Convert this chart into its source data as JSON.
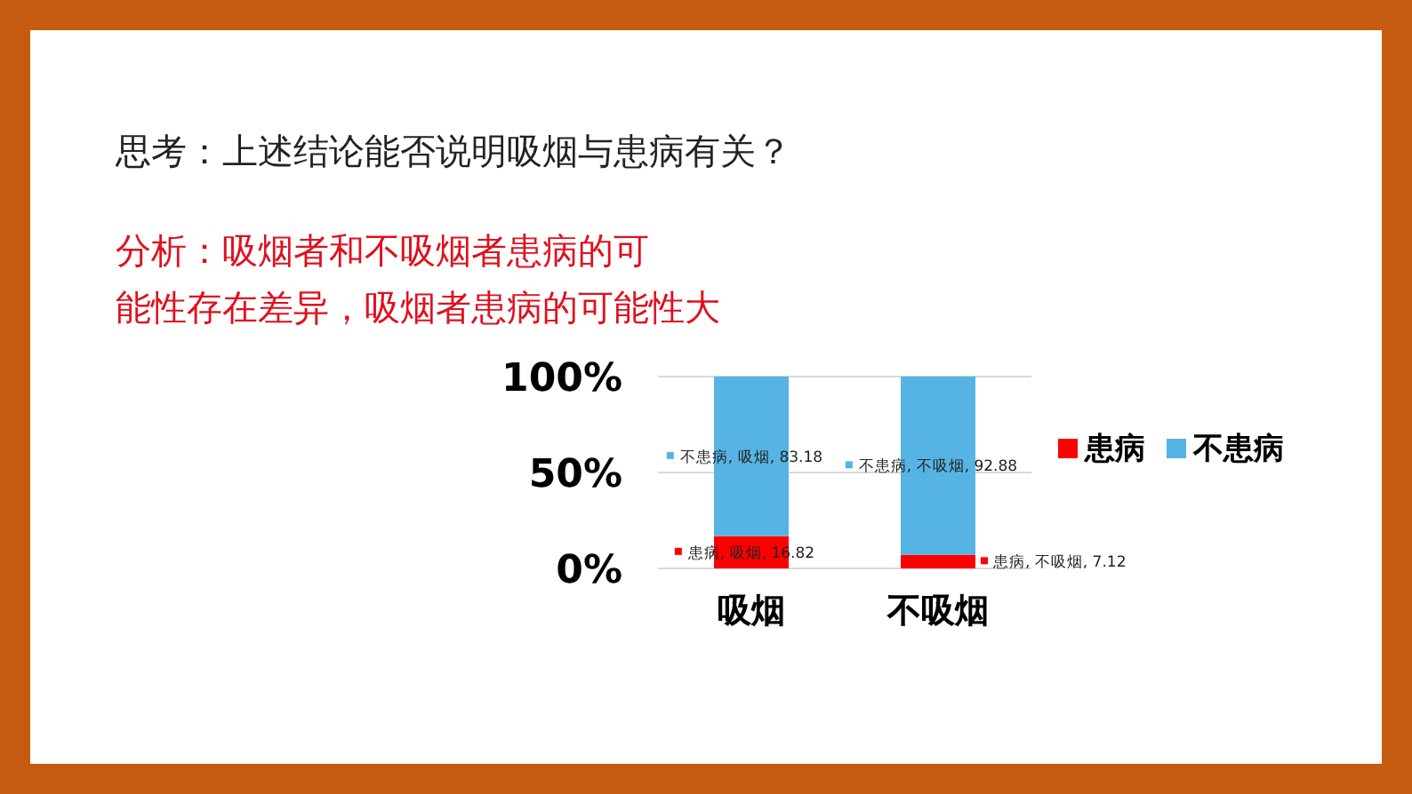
{
  "chart_data": {
    "type": "bar",
    "stacked": true,
    "title": "思考：上述结论能否说明吸烟与患病有关？",
    "annotations": [
      "分析：吸烟者和不吸烟者患病的可能性存在差异，吸烟者患病的可能性大"
    ],
    "categories": [
      "吸烟",
      "不吸烟"
    ],
    "series": [
      {
        "name": "患病",
        "color": "#ff0000",
        "values": [
          16.82,
          7.12
        ],
        "value_labels": [
          "患病, 吸烟, 16.82",
          "患病, 不吸烟, 7.12"
        ]
      },
      {
        "name": "不患病",
        "color": "#56b4e5",
        "values": [
          83.18,
          92.88
        ],
        "value_labels": [
          "不患病, 吸烟, 83.18",
          "不患病, 不吸烟, 92.88"
        ]
      }
    ],
    "ylim": [
      0,
      100
    ],
    "yticks": [
      {
        "value": 0,
        "label": "0%"
      },
      {
        "value": 50,
        "label": "50%"
      },
      {
        "value": 100,
        "label": "100%"
      }
    ],
    "grid": "y",
    "legend": "right"
  }
}
